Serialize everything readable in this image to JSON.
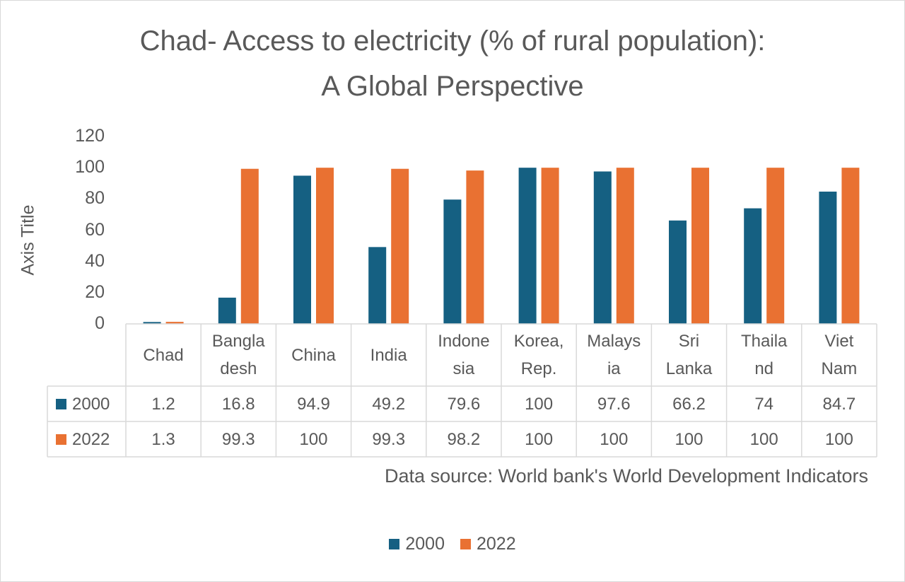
{
  "chart_data": {
    "type": "bar",
    "title_line1": "Chad- Access to electricity  (% of rural population):",
    "title_line2": "A Global Perspective",
    "ylabel": "Axis Title",
    "xlabel": "",
    "ylim": [
      0,
      120
    ],
    "yticks": [
      "0",
      "20",
      "40",
      "60",
      "80",
      "100",
      "120"
    ],
    "grid": false,
    "legend_position": "bottom",
    "categories": [
      "Chad",
      "Bangladesh",
      "China",
      "India",
      "Indonesia",
      "Korea, Rep.",
      "Malaysia",
      "Sri Lanka",
      "Thailand",
      "Viet Nam"
    ],
    "category_lines": [
      [
        "Chad"
      ],
      [
        "Bangla",
        "desh"
      ],
      [
        "China"
      ],
      [
        "India"
      ],
      [
        "Indone",
        "sia"
      ],
      [
        "Korea,",
        "Rep."
      ],
      [
        "Malays",
        "ia"
      ],
      [
        "Sri",
        "Lanka"
      ],
      [
        "Thaila",
        "nd"
      ],
      [
        "Viet",
        "Nam"
      ]
    ],
    "series": [
      {
        "name": "2000",
        "color": "#156082",
        "values": [
          1.2,
          16.8,
          94.9,
          49.2,
          79.6,
          100,
          97.6,
          66.2,
          74,
          84.7
        ],
        "labels": [
          "1.2",
          "16.8",
          "94.9",
          "49.2",
          "79.6",
          "100",
          "97.6",
          "66.2",
          "74",
          "84.7"
        ]
      },
      {
        "name": "2022",
        "color": "#E97132",
        "values": [
          1.3,
          99.3,
          100,
          99.3,
          98.2,
          100,
          100,
          100,
          100,
          100
        ],
        "labels": [
          "1.3",
          "99.3",
          "100",
          "99.3",
          "98.2",
          "100",
          "100",
          "100",
          "100",
          "100"
        ]
      }
    ],
    "source_note": "Data source: World bank's World Development Indicators"
  }
}
